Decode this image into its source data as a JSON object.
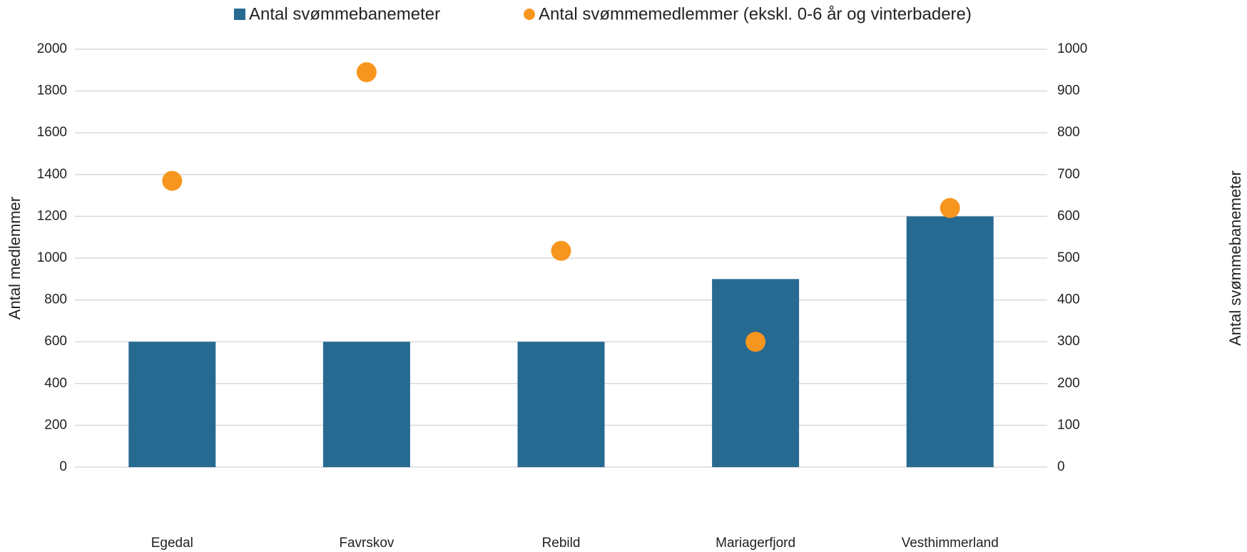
{
  "chart_data": {
    "type": "combo",
    "categories": [
      "Egedal",
      "Favrskov",
      "Rebild",
      "Mariagerfjord",
      "Vesthimmerland"
    ],
    "series": [
      {
        "name": "Antal svømmebanemeter",
        "type": "bar",
        "axis": "y2",
        "color": "#276a91",
        "values": [
          300,
          300,
          300,
          450,
          600
        ]
      },
      {
        "name": "Antal svømmemedlemmer (ekskl. 0-6 år og vinterbadere)",
        "type": "scatter",
        "axis": "y",
        "color": "#f7961e",
        "values": [
          1370,
          1890,
          1035,
          600,
          1240
        ]
      }
    ],
    "y_label": "Antal medlemmer",
    "y2_label": "Antal svømmebanemeter",
    "ylim": [
      0,
      2000
    ],
    "yticks": [
      0,
      200,
      400,
      600,
      800,
      1000,
      1200,
      1400,
      1600,
      1800,
      2000
    ],
    "y2lim": [
      0,
      1000
    ],
    "y2ticks": [
      0,
      100,
      200,
      300,
      400,
      500,
      600,
      700,
      800,
      900,
      1000
    ],
    "grid": true,
    "legend": "top"
  }
}
